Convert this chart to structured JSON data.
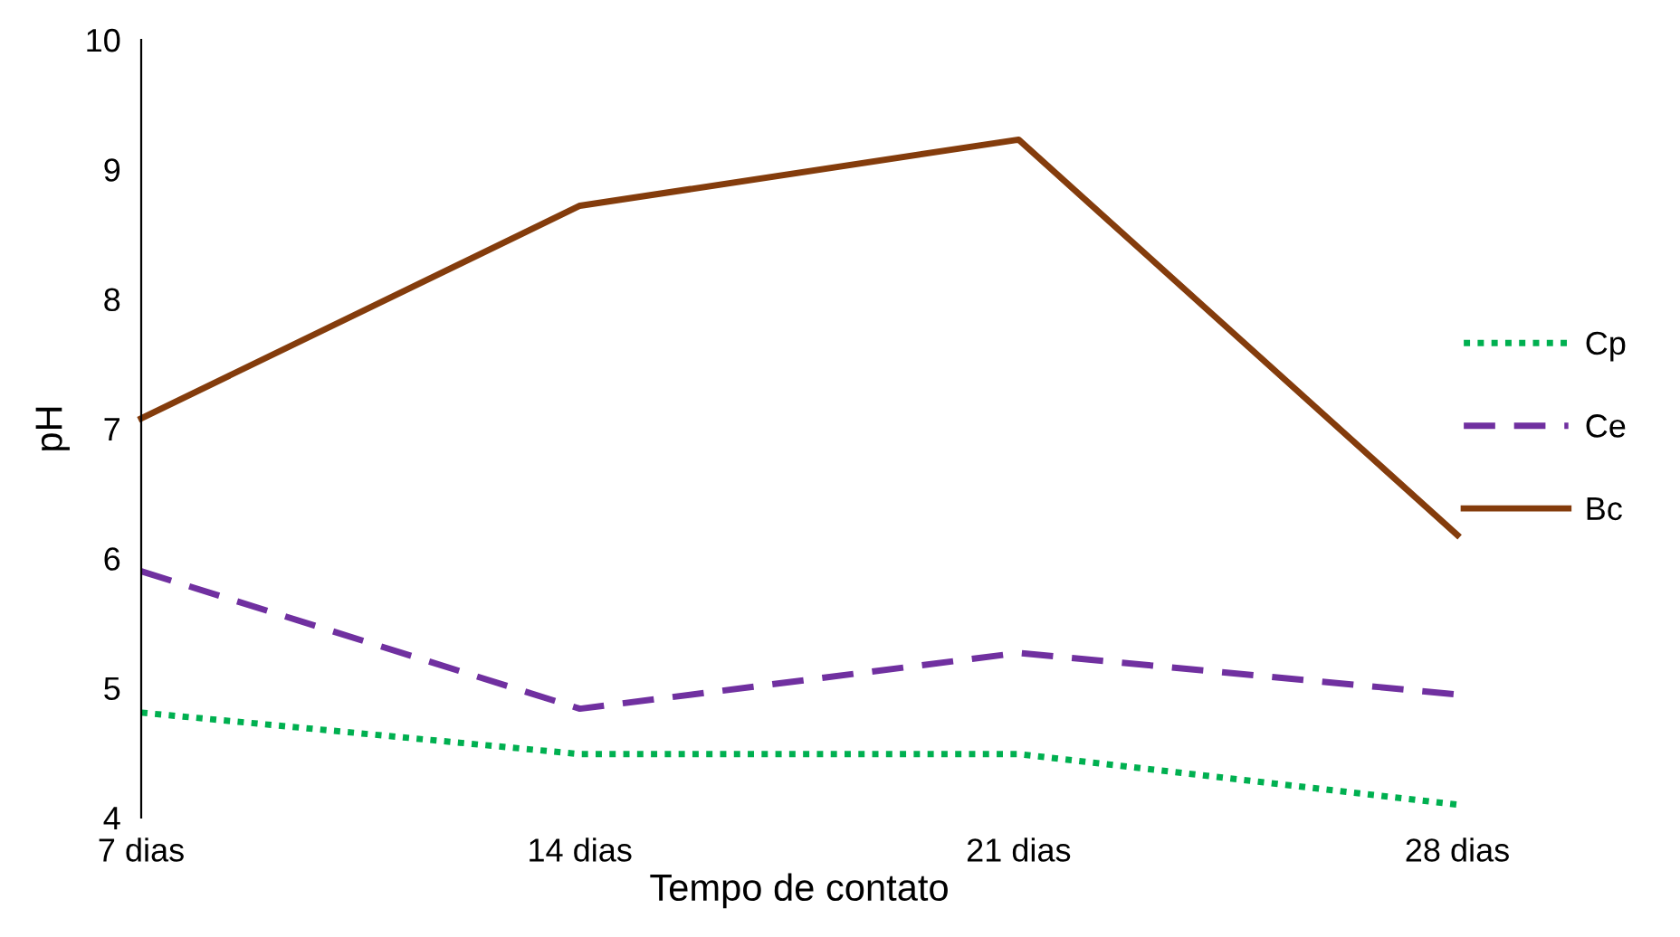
{
  "chart_data": {
    "type": "line",
    "xlabel": "Tempo de contato",
    "ylabel": "pH",
    "categories": [
      "7 dias",
      "14 dias",
      "21 dias",
      "28 dias"
    ],
    "series": [
      {
        "name": "Cp",
        "color": "#00b050",
        "line_style": "dotted",
        "values": [
          4.81,
          4.49,
          4.49,
          4.1
        ]
      },
      {
        "name": "Ce",
        "color": "#7030a0",
        "line_style": "dashed",
        "values": [
          5.9,
          4.84,
          5.27,
          4.95
        ]
      },
      {
        "name": "Bc",
        "color": "#843c0c",
        "line_style": "solid",
        "values": [
          7.08,
          8.72,
          9.23,
          6.18
        ]
      }
    ],
    "ylim": [
      4,
      10
    ],
    "yticks": [
      4,
      5,
      6,
      7,
      8,
      9,
      10
    ],
    "grid": false,
    "legend": "right"
  }
}
